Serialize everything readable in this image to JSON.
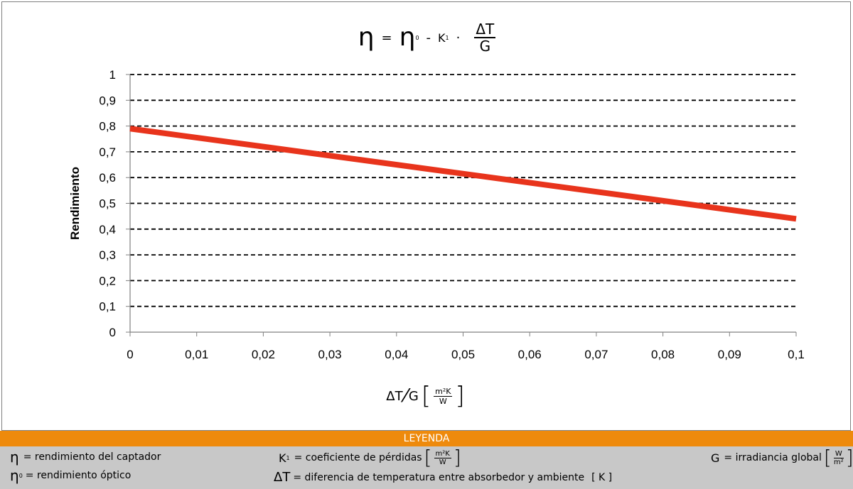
{
  "formula": {
    "eta": "η",
    "equals": "=",
    "eta0": "η",
    "eta0_sub": "0",
    "minus": "-",
    "k1": "K",
    "k1_sub": "1",
    "dot": "·",
    "frac_num": "ΔT",
    "frac_den": "G"
  },
  "chart_data": {
    "type": "line",
    "title": "",
    "ylabel": "Rendimiento",
    "xlim": [
      0,
      0.1
    ],
    "ylim": [
      0,
      1
    ],
    "x_ticks": [
      "0",
      "0,01",
      "0,02",
      "0,03",
      "0,04",
      "0,05",
      "0,06",
      "0,07",
      "0,08",
      "0,09",
      "0,1"
    ],
    "y_ticks": [
      "0",
      "0,1",
      "0,2",
      "0,3",
      "0,4",
      "0,5",
      "0,6",
      "0,7",
      "0,8",
      "0,9",
      "1"
    ],
    "grid": true,
    "series": [
      {
        "color": "#e8341c",
        "x": [
          0,
          0.1
        ],
        "y": [
          0.79,
          0.44
        ]
      }
    ]
  },
  "xaxis_label": {
    "main": "ΔT",
    "slash": "⁄",
    "denom": "G",
    "bracket_open": "[",
    "unit_num": "m²K",
    "unit_den": "W",
    "bracket_close": "]"
  },
  "legend": {
    "header": "LEYENDA",
    "bg_color": "#ee8a0c",
    "items": {
      "eta_sym": "η",
      "eta_text": "= rendimiento del captador",
      "eta0_sym": "η",
      "eta0_sub": "0",
      "eta0_text": "= rendimiento óptico",
      "k1_sym": "K",
      "k1_sub": "1",
      "k1_text": "= coeficiente de pérdidas",
      "k1_bracket_open": "[",
      "k1_unit_num": "m²K",
      "k1_unit_den": "W",
      "k1_bracket_close": "]",
      "dt_sym": "ΔT",
      "dt_text": "= diferencia de temperatura entre absorbedor y ambiente",
      "dt_unit": "[ K ]",
      "g_sym": "G",
      "g_text": "= irradiancia global",
      "g_bracket_open": "[",
      "g_unit_num": "W",
      "g_unit_den": "m²",
      "g_bracket_close": "]"
    }
  }
}
